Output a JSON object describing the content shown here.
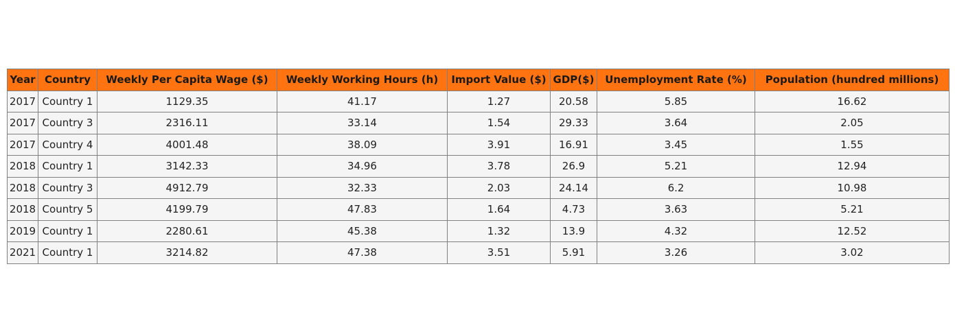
{
  "chart_data": {
    "type": "table",
    "header_color": "#ff7410",
    "cell_color": "#f5f5f5",
    "border_color": "#808080",
    "columns": [
      "Year",
      "Country",
      "Weekly Per Capita Wage ($)",
      "Weekly Working Hours (h)",
      "Import Value ($)",
      "GDP($)",
      "Unemployment Rate (%)",
      "Population (hundred millions)"
    ],
    "rows": [
      [
        "2017",
        "Country 1",
        "1129.35",
        "41.17",
        "1.27",
        "20.58",
        "5.85",
        "16.62"
      ],
      [
        "2017",
        "Country 3",
        "2316.11",
        "33.14",
        "1.54",
        "29.33",
        "3.64",
        "2.05"
      ],
      [
        "2017",
        "Country 4",
        "4001.48",
        "38.09",
        "3.91",
        "16.91",
        "3.45",
        "1.55"
      ],
      [
        "2018",
        "Country 1",
        "3142.33",
        "34.96",
        "3.78",
        "26.9",
        "5.21",
        "12.94"
      ],
      [
        "2018",
        "Country 3",
        "4912.79",
        "32.33",
        "2.03",
        "24.14",
        "6.2",
        "10.98"
      ],
      [
        "2018",
        "Country 5",
        "4199.79",
        "47.83",
        "1.64",
        "4.73",
        "3.63",
        "5.21"
      ],
      [
        "2019",
        "Country 1",
        "2280.61",
        "45.38",
        "1.32",
        "13.9",
        "4.32",
        "12.52"
      ],
      [
        "2021",
        "Country 1",
        "3214.82",
        "47.38",
        "3.51",
        "5.91",
        "3.26",
        "3.02"
      ]
    ]
  }
}
